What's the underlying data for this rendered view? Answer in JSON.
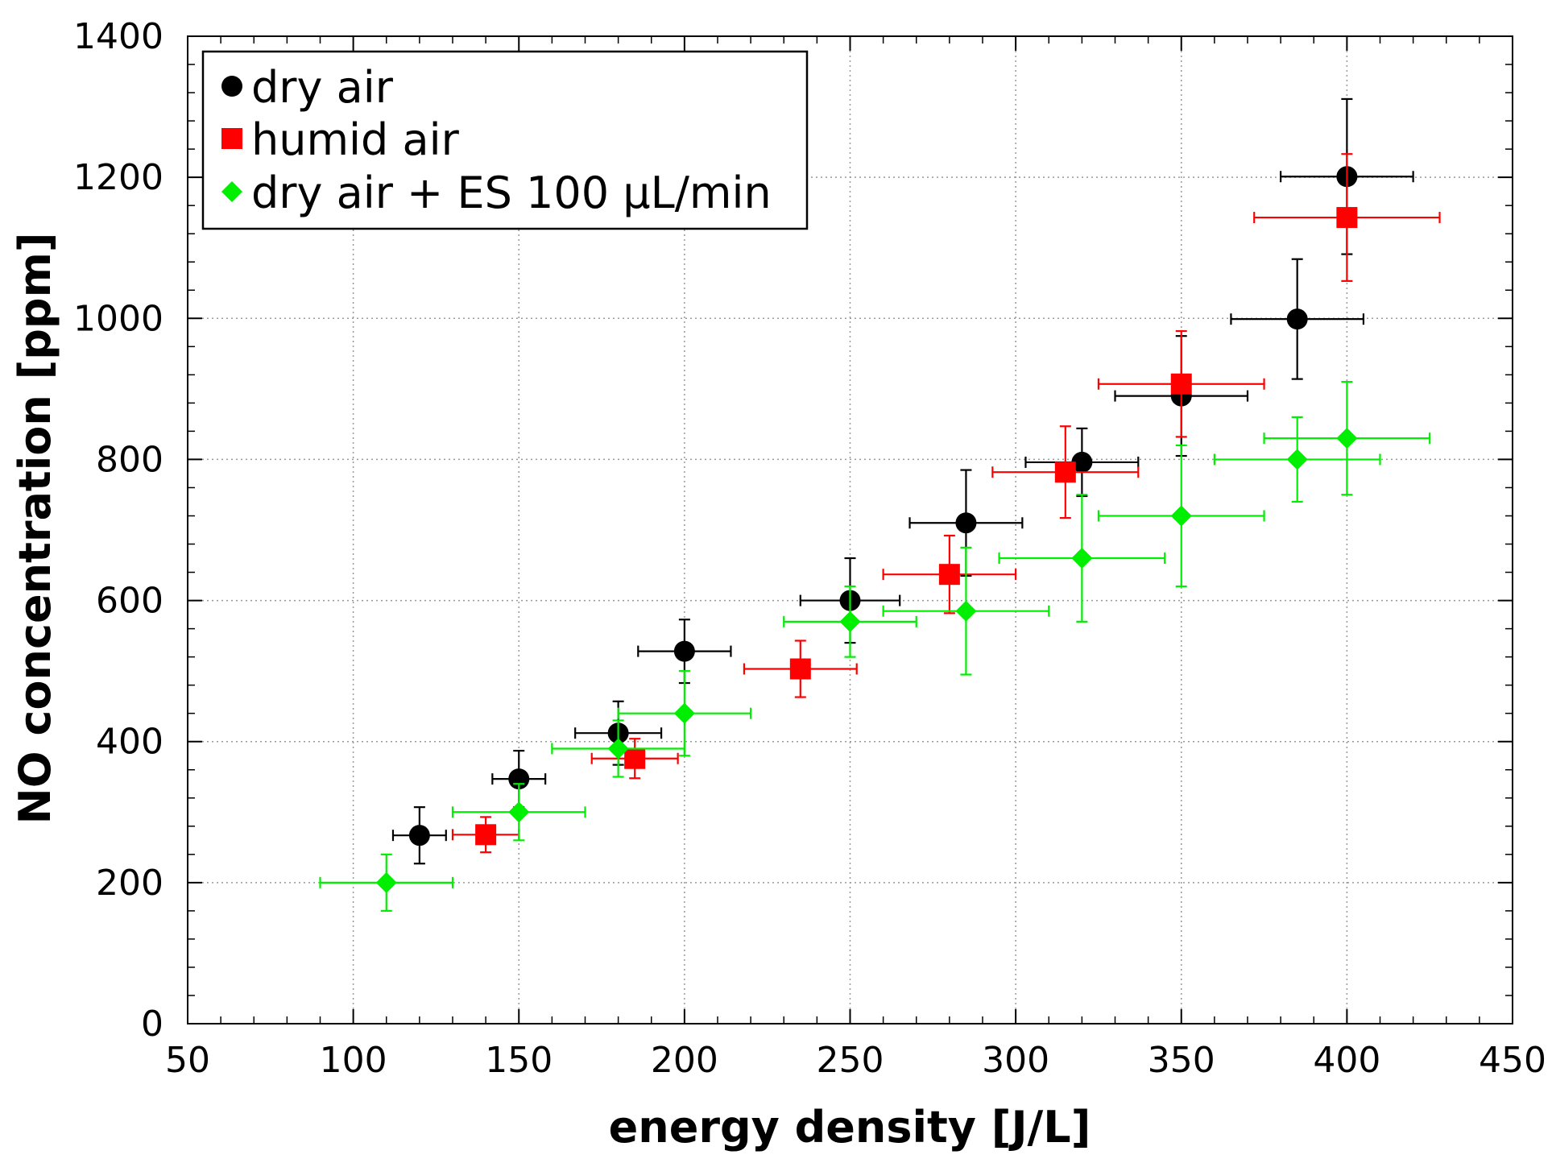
{
  "chart_data": {
    "type": "scatter",
    "title": "",
    "xlabel": "energy density [J/L]",
    "ylabel": "NO concentration [ppm]",
    "xlim": [
      50,
      450
    ],
    "ylim": [
      0,
      1400
    ],
    "xticks": [
      50,
      100,
      150,
      200,
      250,
      300,
      350,
      400,
      450
    ],
    "yticks": [
      0,
      200,
      400,
      600,
      800,
      1000,
      1200,
      1400
    ],
    "xtick_labels": [
      "50",
      "100",
      "150",
      "200",
      "250",
      "300",
      "350",
      "400",
      "450"
    ],
    "ytick_labels": [
      "0",
      "200",
      "400",
      "600",
      "800",
      "1000",
      "1200",
      "1400"
    ],
    "grid": true,
    "legend_position": "top-left",
    "series": [
      {
        "name": "dry air",
        "marker": "circle",
        "color": "#000000",
        "points": [
          {
            "x": 120,
            "y": 267,
            "xerr": 8,
            "yerr": 40
          },
          {
            "x": 150,
            "y": 347,
            "xerr": 8,
            "yerr": 40
          },
          {
            "x": 180,
            "y": 412,
            "xerr": 13,
            "yerr": 45
          },
          {
            "x": 200,
            "y": 528,
            "xerr": 14,
            "yerr": 45
          },
          {
            "x": 250,
            "y": 600,
            "xerr": 15,
            "yerr": 60
          },
          {
            "x": 285,
            "y": 710,
            "xerr": 17,
            "yerr": 75
          },
          {
            "x": 320,
            "y": 796,
            "xerr": 17,
            "yerr": 48
          },
          {
            "x": 350,
            "y": 890,
            "xerr": 20,
            "yerr": 85
          },
          {
            "x": 385,
            "y": 999,
            "xerr": 20,
            "yerr": 85
          },
          {
            "x": 400,
            "y": 1201,
            "xerr": 20,
            "yerr": 110
          }
        ]
      },
      {
        "name": "humid air",
        "marker": "square",
        "color": "#ff0000",
        "points": [
          {
            "x": 140,
            "y": 268,
            "xerr": 10,
            "yerr": 25
          },
          {
            "x": 185,
            "y": 376,
            "xerr": 13,
            "yerr": 28
          },
          {
            "x": 235,
            "y": 503,
            "xerr": 17,
            "yerr": 40
          },
          {
            "x": 280,
            "y": 637,
            "xerr": 20,
            "yerr": 55
          },
          {
            "x": 315,
            "y": 782,
            "xerr": 22,
            "yerr": 65
          },
          {
            "x": 350,
            "y": 907,
            "xerr": 25,
            "yerr": 75
          },
          {
            "x": 400,
            "y": 1143,
            "xerr": 28,
            "yerr": 90
          }
        ]
      },
      {
        "name": "dry air + ES 100 µL/min",
        "marker": "diamond",
        "color": "#00ee00",
        "points": [
          {
            "x": 110,
            "y": 200,
            "xerr": 20,
            "yerr": 40
          },
          {
            "x": 150,
            "y": 300,
            "xerr": 20,
            "yerr": 40
          },
          {
            "x": 180,
            "y": 390,
            "xerr": 20,
            "yerr": 40
          },
          {
            "x": 200,
            "y": 440,
            "xerr": 20,
            "yerr": 60
          },
          {
            "x": 250,
            "y": 570,
            "xerr": 20,
            "yerr": 50
          },
          {
            "x": 285,
            "y": 585,
            "xerr": 25,
            "yerr": 90
          },
          {
            "x": 320,
            "y": 660,
            "xerr": 25,
            "yerr": 90
          },
          {
            "x": 350,
            "y": 720,
            "xerr": 25,
            "yerr": 100
          },
          {
            "x": 385,
            "y": 800,
            "xerr": 25,
            "yerr": 60
          },
          {
            "x": 400,
            "y": 830,
            "xerr": 25,
            "yerr": 80
          }
        ]
      }
    ]
  }
}
